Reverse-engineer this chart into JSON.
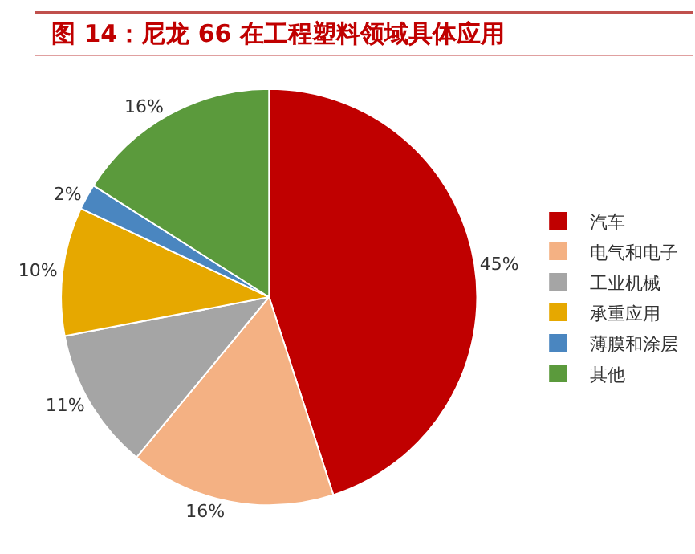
{
  "chart_data": {
    "type": "pie",
    "title": "图 14：尼龙 66 在工程塑料领域具体应用",
    "categories": [
      "汽车",
      "电气和电子",
      "工业机械",
      "承重应用",
      "薄膜和涂层",
      "其他"
    ],
    "values": [
      45,
      16,
      11,
      10,
      2,
      16
    ],
    "value_labels": [
      "45%",
      "16%",
      "11%",
      "10%",
      "2%",
      "16%"
    ],
    "colors": [
      "#c00000",
      "#f4b183",
      "#a5a5a5",
      "#e6a800",
      "#4a86c0",
      "#5b9a3c"
    ],
    "legend": "right"
  }
}
